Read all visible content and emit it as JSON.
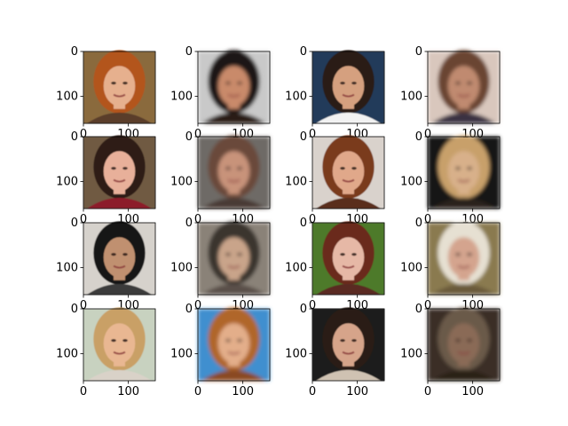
{
  "figure": {
    "rows": 4,
    "cols": 4,
    "y_tick_labels": [
      "0",
      "100"
    ],
    "x_tick_labels": [
      "0",
      "100"
    ],
    "panels": [
      {
        "content": "face-photo",
        "palette": {
          "bg": "#8a6a3e",
          "hair": "#b3541e",
          "skin": "#e6b08e",
          "cloth": "#5a3d2a"
        }
      },
      {
        "content": "face-photo-blurred",
        "palette": {
          "bg": "#c9c9c9",
          "hair": "#1e1614",
          "skin": "#c98a6b",
          "cloth": "#2a1b18"
        }
      },
      {
        "content": "face-photo",
        "palette": {
          "bg": "#203a5a",
          "hair": "#2a1d16",
          "skin": "#d5a07f",
          "cloth": "#f2f2f2"
        }
      },
      {
        "content": "face-photo-blurred",
        "palette": {
          "bg": "#d9c7bd",
          "hair": "#6a4430",
          "skin": "#c08a70",
          "cloth": "#3a3042"
        }
      },
      {
        "content": "face-photo",
        "palette": {
          "bg": "#6f5a43",
          "hair": "#2e1c16",
          "skin": "#e8b09a",
          "cloth": "#8c1f2a"
        }
      },
      {
        "content": "face-photo-blurred",
        "palette": {
          "bg": "#6e6a66",
          "hair": "#6a4a3a",
          "skin": "#c8937a",
          "cloth": "#4a3a34"
        }
      },
      {
        "content": "face-photo",
        "palette": {
          "bg": "#d9d2cc",
          "hair": "#7a3a1e",
          "skin": "#e0a88a",
          "cloth": "#5a2f1e"
        }
      },
      {
        "content": "face-photo-blurred",
        "palette": {
          "bg": "#141414",
          "hair": "#c8a06a",
          "skin": "#d8b08a",
          "cloth": "#2a241a"
        }
      },
      {
        "content": "face-photo",
        "palette": {
          "bg": "#d6d2cc",
          "hair": "#151515",
          "skin": "#c09070",
          "cloth": "#3a3a3a"
        }
      },
      {
        "content": "face-photo-blurred",
        "palette": {
          "bg": "#8a8278",
          "hair": "#3a342e",
          "skin": "#c9a48a",
          "cloth": "#5a5048"
        }
      },
      {
        "content": "face-photo",
        "palette": {
          "bg": "#4d7a2a",
          "hair": "#6a2c1a",
          "skin": "#e6b8a6",
          "cloth": "#5a2a22"
        }
      },
      {
        "content": "face-photo-blurred",
        "palette": {
          "bg": "#8a7a50",
          "hair": "#e6e0d2",
          "skin": "#d4a48e",
          "cloth": "#6a5a3a"
        }
      },
      {
        "content": "face-photo",
        "palette": {
          "bg": "#c8d2c0",
          "hair": "#c9a066",
          "skin": "#e9b792",
          "cloth": "#d9d2c8"
        }
      },
      {
        "content": "face-photo-blurred",
        "palette": {
          "bg": "#3f8fcf",
          "hair": "#b0662a",
          "skin": "#e3ae8a",
          "cloth": "#8a4a22"
        }
      },
      {
        "content": "face-photo",
        "palette": {
          "bg": "#1a1a1a",
          "hair": "#2a1d18",
          "skin": "#d6a48a",
          "cloth": "#cfc2b2"
        }
      },
      {
        "content": "face-photo-blurred",
        "palette": {
          "bg": "#3a2e28",
          "hair": "#6a5a4a",
          "skin": "#8a6a56",
          "cloth": "#2a2018"
        }
      }
    ]
  }
}
